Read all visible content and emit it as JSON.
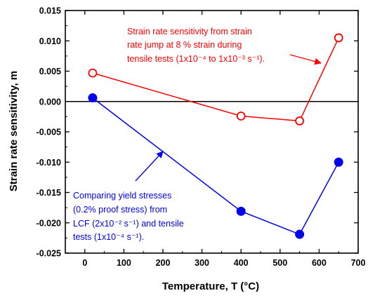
{
  "chart_data": {
    "type": "line",
    "xlabel": "Temperature, T (°C)",
    "ylabel": "Strain rate sensitivity, m",
    "xlim": [
      -50,
      700
    ],
    "ylim": [
      -0.025,
      0.015
    ],
    "x_ticks": [
      "0",
      "100",
      "200",
      "300",
      "400",
      "500",
      "600",
      "700"
    ],
    "y_ticks": [
      "-0.025",
      "-0.020",
      "-0.015",
      "-0.010",
      "-0.005",
      "0.000",
      "0.005",
      "0.010",
      "0.015"
    ],
    "x_tick_values": [
      0,
      100,
      200,
      300,
      400,
      500,
      600,
      700
    ],
    "y_tick_values": [
      -0.025,
      -0.02,
      -0.015,
      -0.01,
      -0.005,
      0,
      0.005,
      0.01,
      0.015
    ],
    "zero_line": true,
    "series": [
      {
        "marker": "open-circle",
        "color": "#ff0000",
        "x": [
          20,
          400,
          550,
          650
        ],
        "y": [
          0.0047,
          -0.0024,
          -0.0032,
          0.0105
        ]
      },
      {
        "marker": "filled-circle",
        "color": "#0000ee",
        "x": [
          20,
          400,
          550,
          650
        ],
        "y": [
          0.0006,
          -0.0181,
          -0.0219,
          -0.01
        ]
      }
    ],
    "annotations": [
      {
        "color": "#ff0000",
        "lines": [
          "Strain rate sensitivity from strain",
          "rate jump at 8 % strain during",
          "tensile tests (1x10⁻⁴ to 1x10⁻³ s⁻¹)."
        ]
      },
      {
        "color": "#0000ee",
        "lines": [
          "Comparing yield stresses",
          "(0.2% proof stress) from",
          "LCF (2x10⁻² s⁻¹) and tensile",
          "tests (1x10⁻⁴ s⁻¹)."
        ]
      }
    ]
  }
}
